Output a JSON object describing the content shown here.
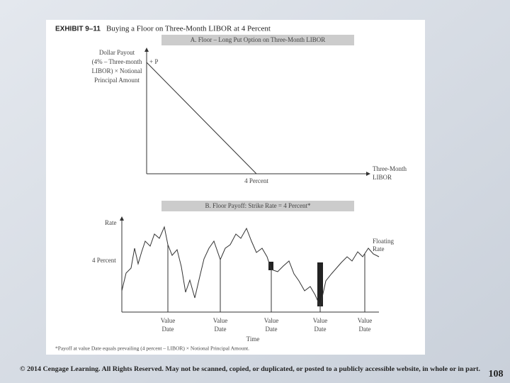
{
  "exhibit": {
    "number": "EXHIBIT 9–11",
    "title": "Buying a Floor on Three-Month LIBOR at 4 Percent"
  },
  "panel_a": {
    "header": "A.  Floor – Long Put Option on Three-Month LIBOR",
    "y_label": [
      "Dollar Payout",
      "(4% – Three-month",
      "LIBOR) × Notional",
      "Principal Amount"
    ],
    "y_marker": "+ P",
    "x_label": [
      "Three-Month",
      "LIBOR"
    ],
    "strike_label": "4 Percent"
  },
  "panel_b": {
    "header": "B.  Floor Payoff: Strike Rate = 4 Percent*",
    "y_label": "Rate",
    "strike_label": "4 Percent",
    "curve_label": [
      "Floating",
      "Rate"
    ],
    "value_dates": [
      [
        "Value",
        "Date"
      ],
      [
        "Value",
        "Date"
      ],
      [
        "Value",
        "Date"
      ],
      [
        "Value",
        "Date"
      ],
      [
        "Value",
        "Date"
      ]
    ],
    "x_label": "Time",
    "footnote": "*Payoff at value Date equals prevailing (4 percent – LIBOR) × Notional Principal Amount."
  },
  "footer": {
    "copyright": "© 2014 Cengage Learning. All Rights Reserved. May not be scanned, copied, or duplicated, or posted to a publicly accessible website, in whole or in part.",
    "page": "108"
  }
}
